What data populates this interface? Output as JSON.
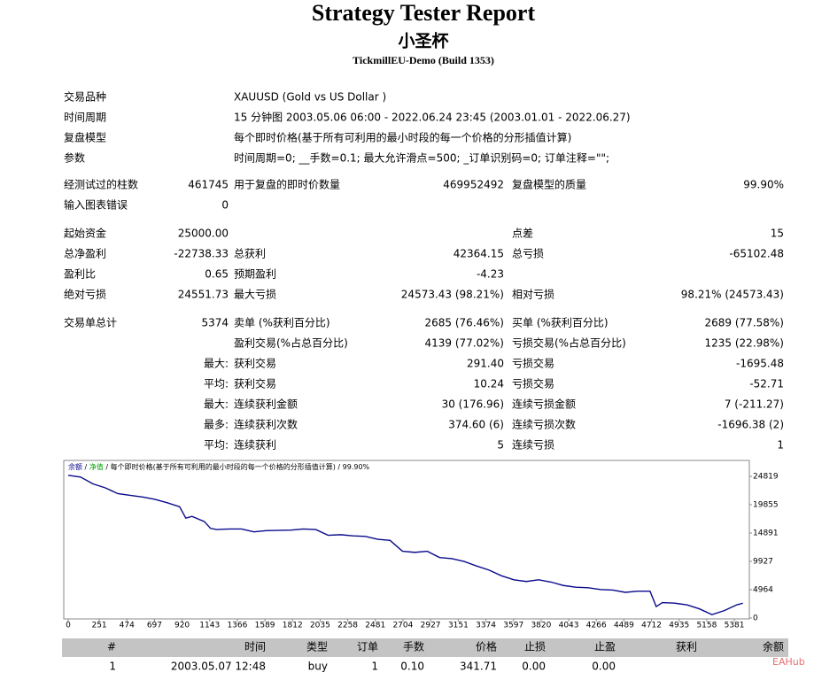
{
  "header": {
    "title": "Strategy Tester Report",
    "subtitle": "小圣杯",
    "server": "TickmillEU-Demo (Build 1353)"
  },
  "info": [
    [
      "交易品种",
      "XAUUSD (Gold vs US Dollar )"
    ],
    [
      "时间周期",
      "15 分钟图 2003.05.06 06:00 - 2022.06.24 23:45 (2003.01.01 - 2022.06.27)"
    ],
    [
      "复盘模型",
      "每个即时价格(基于所有可利用的最小时段的每一个价格的分形插值计算)"
    ],
    [
      "参数",
      "时间周期=0; __手数=0.1; 最大允许滑点=500; _订单识别码=0; 订单注释=\"\";"
    ]
  ],
  "stats": [
    [
      "经测试过的柱数",
      "461745",
      "用于复盘的即时价数量",
      "469952492",
      "复盘模型的质量",
      "99.90%"
    ],
    [
      "输入图表错误",
      "0",
      null,
      null,
      null,
      null
    ],
    [
      "起始资金",
      "25000.00",
      null,
      null,
      "点差",
      "15"
    ],
    [
      "总净盈利",
      "-22738.33",
      "总获利",
      "42364.15",
      "总亏损",
      "-65102.48"
    ],
    [
      "盈利比",
      "0.65",
      "预期盈利",
      "-4.23",
      null,
      null
    ],
    [
      "绝对亏损",
      "24551.73",
      "最大亏损",
      "24573.43 (98.21%)",
      "相对亏损",
      "98.21% (24573.43)"
    ],
    [
      "交易单总计",
      "5374",
      "卖单 (%获利百分比)",
      "2685 (76.46%)",
      "买单 (%获利百分比)",
      "2689 (77.58%)"
    ],
    [
      null,
      null,
      "盈利交易(%占总百分比)",
      "4139 (77.02%)",
      "亏损交易(%占总百分比)",
      "1235 (22.98%)"
    ],
    [
      null,
      "最大:",
      "获利交易",
      "291.40",
      "亏损交易",
      "-1695.48"
    ],
    [
      null,
      "平均:",
      "获利交易",
      "10.24",
      "亏损交易",
      "-52.71"
    ],
    [
      null,
      "最大:",
      "连续获利金额",
      "30 (176.96)",
      "连续亏损金额",
      "7 (-211.27)"
    ],
    [
      null,
      "最多:",
      "连续获利次数",
      "374.60 (6)",
      "连续亏损次数",
      "-1696.38 (2)"
    ],
    [
      null,
      "平均:",
      "连续获利",
      "5",
      "连续亏损",
      "1"
    ]
  ],
  "chart_data": {
    "type": "line",
    "legend_separator": "/",
    "equity": {
      "name": "净值",
      "color": "#00a000"
    },
    "model": "每个即时价格(基于所有可利用的最小时段的每一个价格的分形插值计算)",
    "quality": "99.90%",
    "x": [
      0,
      100,
      200,
      300,
      400,
      500,
      600,
      700,
      800,
      900,
      950,
      1000,
      1100,
      1150,
      1200,
      1300,
      1400,
      1500,
      1600,
      1800,
      1900,
      2000,
      2100,
      2200,
      2300,
      2400,
      2500,
      2600,
      2700,
      2800,
      2900,
      3000,
      3100,
      3200,
      3300,
      3400,
      3500,
      3600,
      3700,
      3800,
      3900,
      4000,
      4100,
      4200,
      4300,
      4400,
      4500,
      4600,
      4700,
      4750,
      4800,
      4900,
      5000,
      5100,
      5200,
      5300,
      5400,
      5450
    ],
    "series": [
      {
        "name": "余额",
        "color": "#0a0a8c",
        "values": [
          25000,
          24700,
          23500,
          22800,
          21800,
          21500,
          21200,
          20800,
          20200,
          19500,
          17500,
          17800,
          16900,
          15700,
          15500,
          15600,
          15600,
          15100,
          15300,
          15400,
          15600,
          15500,
          14500,
          14600,
          14400,
          14300,
          13800,
          13600,
          11700,
          11500,
          11700,
          10600,
          10400,
          9900,
          9100,
          8400,
          7400,
          6700,
          6400,
          6700,
          6300,
          5700,
          5400,
          5300,
          5000,
          4900,
          4500,
          4700,
          4700,
          2000,
          2700,
          2600,
          2300,
          1600,
          600,
          1300,
          2300,
          2600
        ]
      }
    ],
    "xlim": [
      0,
      5495
    ],
    "ylim": [
      0,
      27300
    ],
    "xticks": [
      0,
      251,
      474,
      697,
      920,
      1143,
      1366,
      1589,
      1812,
      2035,
      2258,
      2481,
      2704,
      2927,
      3151,
      3374,
      3597,
      3820,
      4043,
      4266,
      4489,
      4712,
      4935,
      5158,
      5381
    ],
    "yticks": [
      0,
      4964,
      9927,
      14891,
      19855,
      24819
    ]
  },
  "trades": {
    "columns": [
      "#",
      "时间",
      "类型",
      "订单",
      "手数",
      "价格",
      "止损",
      "止盈",
      "获利",
      "余额"
    ],
    "rows": [
      [
        "1",
        "2003.05.07 12:48",
        "buy",
        "1",
        "0.10",
        "341.71",
        "0.00",
        "0.00"
      ]
    ]
  },
  "watermark": "EAHub"
}
